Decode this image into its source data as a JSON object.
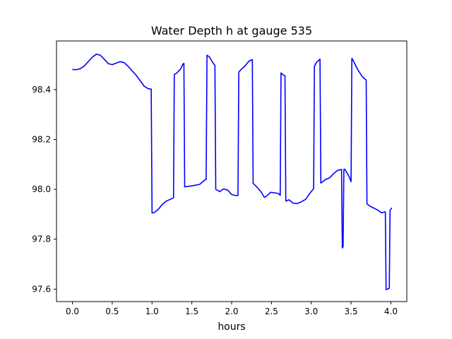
{
  "chart_data": {
    "type": "line",
    "title": "Water Depth h at gauge 535",
    "xlabel": "hours",
    "ylabel": "",
    "xlim": [
      -0.2,
      4.2
    ],
    "ylim": [
      97.55,
      98.595
    ],
    "xticks": [
      0.0,
      0.5,
      1.0,
      1.5,
      2.0,
      2.5,
      3.0,
      3.5,
      4.0
    ],
    "xtick_labels": [
      "0.0",
      "0.5",
      "1.0",
      "1.5",
      "2.0",
      "2.5",
      "3.0",
      "3.5",
      "4.0"
    ],
    "yticks": [
      97.6,
      97.8,
      98.0,
      98.2,
      98.4
    ],
    "ytick_labels": [
      "97.6",
      "97.8",
      "98.0",
      "98.2",
      "98.4"
    ],
    "grid": false,
    "legend": "none",
    "series": [
      {
        "color": "#0000ff",
        "x": [
          0.0,
          0.05,
          0.1,
          0.15,
          0.2,
          0.25,
          0.3,
          0.35,
          0.4,
          0.45,
          0.5,
          0.55,
          0.6,
          0.65,
          0.7,
          0.75,
          0.8,
          0.85,
          0.9,
          0.95,
          0.99,
          1.0,
          1.03,
          1.08,
          1.13,
          1.18,
          1.23,
          1.27,
          1.28,
          1.31,
          1.36,
          1.39,
          1.4,
          1.41,
          1.5,
          1.6,
          1.66,
          1.68,
          1.69,
          1.72,
          1.76,
          1.79,
          1.8,
          1.85,
          1.9,
          1.95,
          2.0,
          2.05,
          2.08,
          2.09,
          2.12,
          2.17,
          2.22,
          2.26,
          2.27,
          2.32,
          2.37,
          2.41,
          2.44,
          2.49,
          2.54,
          2.59,
          2.61,
          2.62,
          2.65,
          2.67,
          2.68,
          2.72,
          2.77,
          2.82,
          2.87,
          2.93,
          2.98,
          3.03,
          3.04,
          3.07,
          3.11,
          3.12,
          3.14,
          3.16,
          3.18,
          3.23,
          3.28,
          3.33,
          3.38,
          3.39,
          3.4,
          3.41,
          3.42,
          3.47,
          3.5,
          3.51,
          3.52,
          3.58,
          3.64,
          3.69,
          3.7,
          3.74,
          3.79,
          3.84,
          3.88,
          3.93,
          3.94,
          3.98,
          3.99,
          4.01
        ],
        "y": [
          98.48,
          98.48,
          98.484,
          98.495,
          98.513,
          98.53,
          98.542,
          98.538,
          98.522,
          98.504,
          98.5,
          98.506,
          98.512,
          98.508,
          98.493,
          98.475,
          98.458,
          98.436,
          98.414,
          98.404,
          98.402,
          97.905,
          97.907,
          97.92,
          97.94,
          97.953,
          97.96,
          97.966,
          98.461,
          98.466,
          98.483,
          98.503,
          98.505,
          98.01,
          98.014,
          98.02,
          98.037,
          98.04,
          98.538,
          98.531,
          98.51,
          98.497,
          98.0,
          97.991,
          98.002,
          97.997,
          97.979,
          97.975,
          97.976,
          98.47,
          98.481,
          98.496,
          98.515,
          98.52,
          98.024,
          98.008,
          97.99,
          97.968,
          97.973,
          97.988,
          97.986,
          97.983,
          97.976,
          98.467,
          98.458,
          98.456,
          97.953,
          97.958,
          97.945,
          97.943,
          97.949,
          97.96,
          97.983,
          98.003,
          98.494,
          98.511,
          98.522,
          98.025,
          98.03,
          98.034,
          98.04,
          98.046,
          98.063,
          98.076,
          98.08,
          97.765,
          97.77,
          98.08,
          98.081,
          98.055,
          98.031,
          98.525,
          98.521,
          98.482,
          98.452,
          98.438,
          97.942,
          97.932,
          97.924,
          97.916,
          97.906,
          97.91,
          97.598,
          97.603,
          97.915,
          97.926
        ]
      }
    ]
  }
}
